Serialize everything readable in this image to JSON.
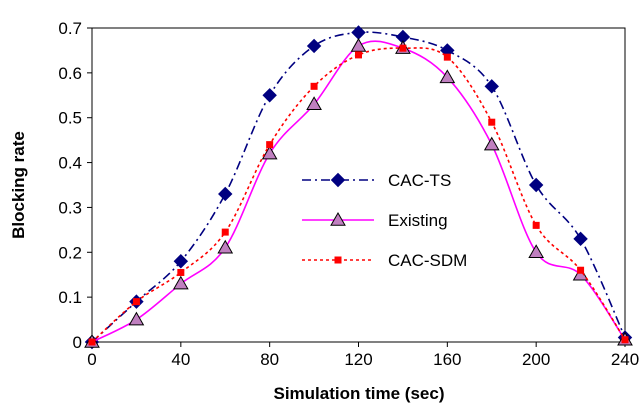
{
  "chart_data": {
    "type": "line",
    "xlabel": "Simulation time (sec)",
    "ylabel": "Blocking rate",
    "xlim": [
      0,
      240
    ],
    "ylim": [
      0,
      0.7
    ],
    "x_ticks": [
      "0",
      "40",
      "80",
      "120",
      "160",
      "200",
      "240"
    ],
    "y_ticks": [
      "0",
      "0.1",
      "0.2",
      "0.3",
      "0.4",
      "0.5",
      "0.6",
      "0.7"
    ],
    "grid": false,
    "legend_position": "center-right",
    "series": [
      {
        "name": "CAC-TS",
        "color": "#000080",
        "line_style": "dash-dot",
        "marker": "diamond",
        "x": [
          0,
          20,
          40,
          60,
          80,
          100,
          120,
          140,
          160,
          180,
          200,
          220,
          240
        ],
        "values": [
          0,
          0.09,
          0.18,
          0.33,
          0.55,
          0.66,
          0.69,
          0.68,
          0.65,
          0.57,
          0.35,
          0.23,
          0.01
        ]
      },
      {
        "name": "Existing",
        "color": "#ff00ff",
        "line_style": "solid",
        "marker": "triangle",
        "x": [
          0,
          20,
          40,
          60,
          80,
          100,
          120,
          140,
          160,
          180,
          200,
          220,
          240
        ],
        "values": [
          0,
          0.05,
          0.13,
          0.21,
          0.42,
          0.53,
          0.66,
          0.655,
          0.59,
          0.44,
          0.2,
          0.15,
          0.005
        ]
      },
      {
        "name": "CAC-SDM",
        "color": "#ff0000",
        "line_style": "dotted",
        "marker": "square",
        "x": [
          0,
          20,
          40,
          60,
          80,
          100,
          120,
          140,
          160,
          180,
          200,
          220,
          240
        ],
        "values": [
          0,
          0.09,
          0.155,
          0.245,
          0.44,
          0.57,
          0.64,
          0.655,
          0.635,
          0.49,
          0.26,
          0.16,
          0.005
        ]
      }
    ]
  }
}
